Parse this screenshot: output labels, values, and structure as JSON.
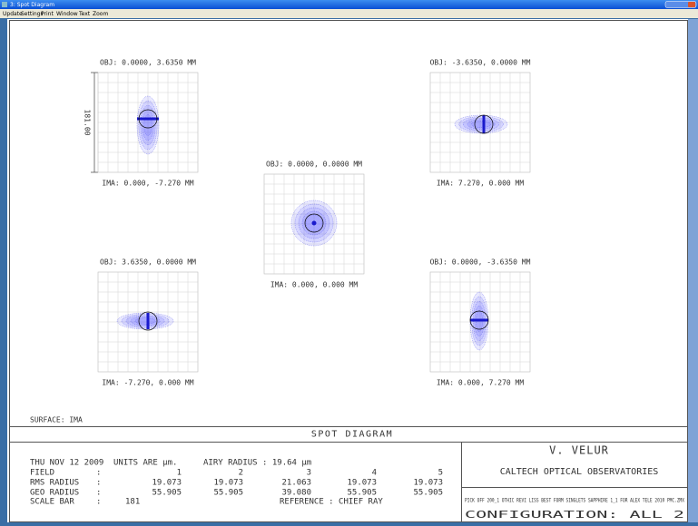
{
  "window": {
    "title": "3: Spot Diagram",
    "menu": [
      "Update",
      "Settings",
      "Print",
      "Window",
      "Text",
      "Zoom"
    ]
  },
  "panels": [
    {
      "obj": "OBJ: 0.0000, 3.6350 MM",
      "ima": "IMA: 0.000, -7.270 MM"
    },
    {
      "obj": "OBJ: -3.6350, 0.0000 MM",
      "ima": "IMA: 7.270, 0.000 MM"
    },
    {
      "obj": "OBJ: 0.0000, 0.0000 MM",
      "ima": "IMA: 0.000, 0.000 MM"
    },
    {
      "obj": "OBJ: 3.6350, 0.0000 MM",
      "ima": "IMA: -7.270, 0.000 MM"
    },
    {
      "obj": "OBJ: 0.0000, -3.6350 MM",
      "ima": "IMA: 0.000, 7.270 MM"
    }
  ],
  "scale_bar_label": "181.00",
  "surface": "SURFACE: IMA",
  "title": "SPOT DIAGRAM",
  "info": {
    "date": "THU NOV 12 2009",
    "units": "UNITS ARE µm.",
    "airy": "AIRY RADIUS : 19.64 µm",
    "separator": ":",
    "rows": [
      {
        "label": "FIELD",
        "values": [
          "1",
          "2",
          "3",
          "4",
          "5"
        ]
      },
      {
        "label": "RMS RADIUS",
        "values": [
          "19.073",
          "19.073",
          "21.063",
          "19.073",
          "19.073"
        ]
      },
      {
        "label": "GEO RADIUS",
        "values": [
          "55.905",
          "55.905",
          "39.080",
          "55.905",
          "55.905"
        ]
      }
    ],
    "scale_bar": {
      "label": "SCALE BAR",
      "value": "181"
    },
    "reference": "REFERENCE  : CHIEF RAY"
  },
  "author": "V. VELUR",
  "organization": "CALTECH OPTICAL OBSERVATORIES",
  "file": "PICK OFF 200_1 OTHIC REVI LISS BEST FORM SINGLETS SAPPHIRE 1_1 FOR ALEX TELE 2010 PMC.ZMX",
  "configuration": "CONFIGURATION:  ALL 2"
}
